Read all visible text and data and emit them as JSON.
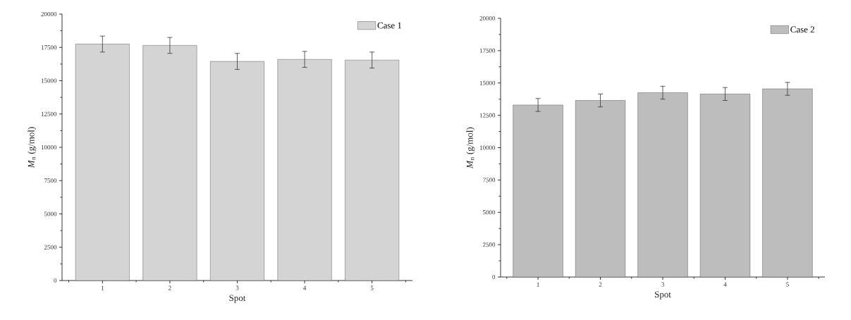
{
  "chart_data": [
    {
      "type": "bar",
      "xlabel": "Spot",
      "ylabel": "*M*$_{n}$ (g/mol)",
      "categories": [
        "1",
        "2",
        "3",
        "4",
        "5"
      ],
      "series": [
        {
          "name": "Case 1",
          "color": "#d4d4d4",
          "values": [
            17750,
            17650,
            16450,
            16600,
            16550
          ],
          "errors": [
            600,
            600,
            600,
            600,
            600
          ]
        }
      ],
      "ylim": [
        0,
        20000
      ],
      "yticks": [
        0,
        2500,
        5000,
        7500,
        10000,
        12500,
        15000,
        17500,
        20000
      ],
      "legend": "top right"
    },
    {
      "type": "bar",
      "xlabel": "Spot",
      "ylabel": "*M*$_{n}$ (g/mol)",
      "categories": [
        "1",
        "2",
        "3",
        "4",
        "5"
      ],
      "series": [
        {
          "name": "Case 2",
          "color": "#bdbdbd",
          "values": [
            13300,
            13650,
            14250,
            14150,
            14550
          ],
          "errors": [
            500,
            500,
            500,
            500,
            500
          ]
        }
      ],
      "ylim": [
        0,
        20000
      ],
      "yticks": [
        0,
        2500,
        5000,
        7500,
        10000,
        12500,
        15000,
        17500,
        20000
      ],
      "legend": "top right"
    }
  ]
}
